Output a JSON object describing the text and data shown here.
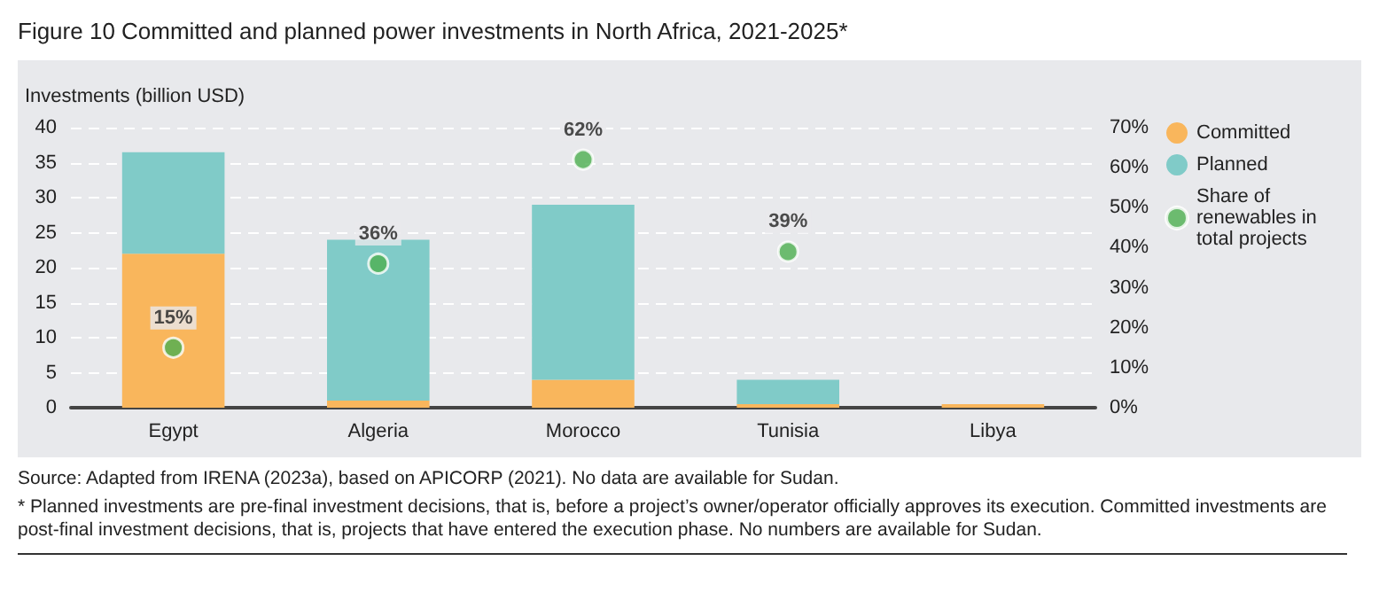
{
  "chart_data": {
    "type": "bar",
    "stacked": true,
    "title": "Figure 10   Committed and planned power investments in North Africa, 2021-2025*",
    "ylabel": "Investments (billion USD)",
    "categories": [
      "Egypt",
      "Algeria",
      "Morocco",
      "Tunisia",
      "Libya"
    ],
    "series": [
      {
        "name": "Committed",
        "color": "#f9b65c",
        "values": [
          22,
          1,
          4,
          0.5,
          0.5
        ]
      },
      {
        "name": "Planned",
        "color": "#80cbc8",
        "values": [
          14.5,
          23,
          25,
          3.5,
          null
        ]
      },
      {
        "name": "Share of renewables in total projects",
        "type": "scatter",
        "axis": "y2",
        "color": "#4caf50",
        "marker": "circle",
        "data_labels": true,
        "value_labels": [
          "15%",
          "36%",
          "62%",
          "39%",
          null
        ],
        "values": [
          15,
          36,
          62,
          39,
          null
        ]
      }
    ],
    "ylim": [
      0,
      40
    ],
    "yticks": [
      0,
      5,
      10,
      15,
      20,
      25,
      30,
      35,
      40
    ],
    "y2lim": [
      0,
      70
    ],
    "y2ticks": [
      {
        "value": 0,
        "label": "0%"
      },
      {
        "value": 10,
        "label": "10%"
      },
      {
        "value": 20,
        "label": "20%"
      },
      {
        "value": 30,
        "label": "30%"
      },
      {
        "value": 40,
        "label": "40%"
      },
      {
        "value": 50,
        "label": "50%"
      },
      {
        "value": 60,
        "label": "60%"
      },
      {
        "value": 70,
        "label": "70%"
      }
    ],
    "grid": "y",
    "legend": "right",
    "annotations": [
      "Source: Adapted from IRENA (2023a), based on APICORP (2021). No data are available for Sudan.",
      "* Planned investments are pre-final investment decisions, that is, before a project’s owner/operator officially approves its execution. Committed investments are post-final investment decisions, that is, projects that have entered the execution phase. No numbers are available for Sudan."
    ]
  }
}
